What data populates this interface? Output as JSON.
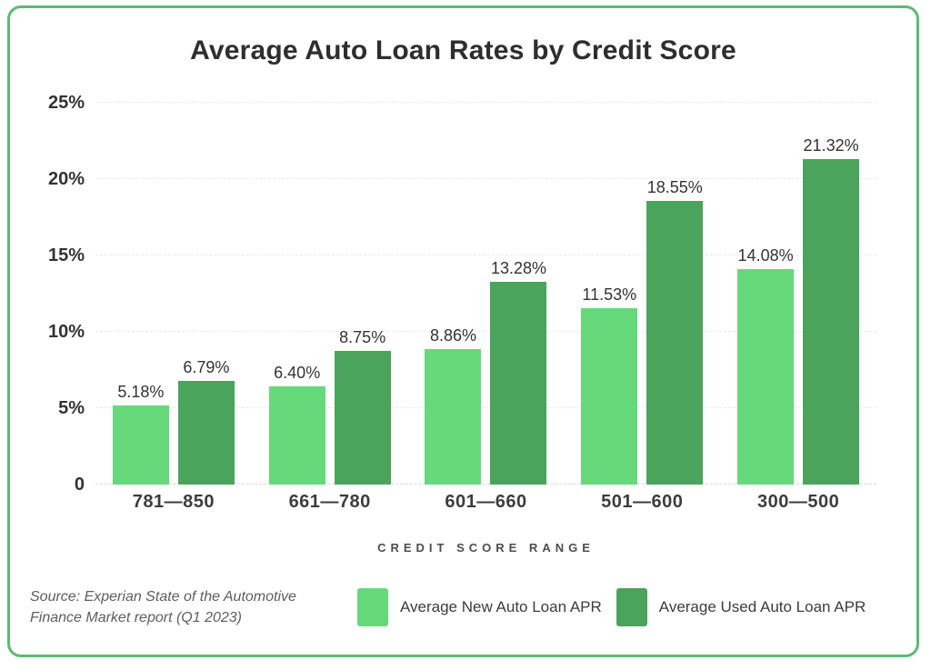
{
  "title": "Average Auto Loan Rates by Credit Score",
  "xaxis_title": "CREDIT SCORE RANGE",
  "source": {
    "lines": [
      "Source: Experian State of the Automotive",
      "Finance Market report (Q1 2023)"
    ]
  },
  "colors": {
    "new_apr": "#66d97b",
    "used_apr": "#4aa45b",
    "card_border": "#5abc72",
    "gridline": "#e9e9e9",
    "text_dark": "#333333"
  },
  "chart_data": {
    "type": "bar",
    "title": "Average Auto Loan Rates by Credit Score",
    "xlabel": "CREDIT SCORE RANGE",
    "ylabel": "",
    "categories": [
      "781—850",
      "661—780",
      "601—660",
      "501—600",
      "300—500"
    ],
    "series": [
      {
        "name": "Average New Auto Loan APR",
        "color": "#66d97b",
        "values": [
          5.18,
          6.4,
          8.86,
          11.53,
          14.08
        ],
        "labels": [
          "5.18%",
          "6.40%",
          "8.86%",
          "11.53%",
          "14.08%"
        ]
      },
      {
        "name": "Average Used Auto Loan APR",
        "color": "#4aa45b",
        "values": [
          6.79,
          8.75,
          13.28,
          18.55,
          21.32
        ],
        "labels": [
          "6.79%",
          "8.75%",
          "13.28%",
          "18.55%",
          "21.32%"
        ]
      }
    ],
    "ylim": [
      0,
      25
    ],
    "yticks": [
      {
        "value": 0,
        "label": "0"
      },
      {
        "value": 5,
        "label": "5%"
      },
      {
        "value": 10,
        "label": "10%"
      },
      {
        "value": 15,
        "label": "15%"
      },
      {
        "value": 20,
        "label": "20%"
      },
      {
        "value": 25,
        "label": "25%"
      }
    ],
    "grid": "horizontal-dashed",
    "legend_position": "bottom"
  }
}
